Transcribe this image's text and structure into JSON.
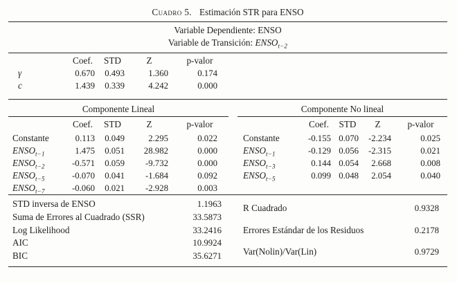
{
  "colors": {
    "text": "#1f1f1f",
    "rule": "#2a2a2a",
    "background": "#fdfdfc"
  },
  "caption": {
    "label": "Cuadro 5.",
    "title": "Estimación STR para ENSO"
  },
  "subtitle": {
    "dependent": "Variable Dependiente: ENSO",
    "transition_prefix": "Variable de Transición: ",
    "transition_var": {
      "base": "ENSO",
      "sub": "t−2"
    }
  },
  "params": {
    "headers": [
      "Coef.",
      "STD",
      "Z",
      "p-valor"
    ],
    "rows": [
      {
        "label": "γ",
        "coef": "0.670",
        "std": "0.493",
        "z": "1.360",
        "p": "0.174"
      },
      {
        "label": "c",
        "coef": "1.439",
        "std": "0.339",
        "z": "4.242",
        "p": "0.000"
      }
    ]
  },
  "linear": {
    "title": "Componente Lineal",
    "headers": [
      "Coef.",
      "STD",
      "Z",
      "p-valor"
    ],
    "rows": [
      {
        "base": "Constante",
        "sub": "",
        "coef": "0.113",
        "std": "0.049",
        "z": "2.295",
        "p": "0.022"
      },
      {
        "base": "ENSO",
        "sub": "t−1",
        "coef": "1.475",
        "std": "0.051",
        "z": "28.982",
        "p": "0.000"
      },
      {
        "base": "ENSO",
        "sub": "t−2",
        "coef": "-0.571",
        "std": "0.059",
        "z": "-9.732",
        "p": "0.000"
      },
      {
        "base": "ENSO",
        "sub": "t−5",
        "coef": "-0.070",
        "std": "0.041",
        "z": "-1.684",
        "p": "0.092"
      },
      {
        "base": "ENSO",
        "sub": "t−7",
        "coef": "-0.060",
        "std": "0.021",
        "z": "-2.928",
        "p": "0.003"
      }
    ]
  },
  "nonlinear": {
    "title": "Componente No lineal",
    "headers": [
      "Coef.",
      "STD",
      "Z",
      "p-valor"
    ],
    "rows": [
      {
        "base": "Constante",
        "sub": "",
        "coef": "-0.155",
        "std": "0.070",
        "z": "-2.234",
        "p": "0.025"
      },
      {
        "base": "ENSO",
        "sub": "t−1",
        "coef": "-0.129",
        "std": "0.056",
        "z": "-2.315",
        "p": "0.021"
      },
      {
        "base": "ENSO",
        "sub": "t−3",
        "coef": "0.144",
        "std": "0.054",
        "z": "2.668",
        "p": "0.008"
      },
      {
        "base": "ENSO",
        "sub": "t−5",
        "coef": "0.099",
        "std": "0.048",
        "z": "2.054",
        "p": "0.040"
      }
    ]
  },
  "stats": {
    "left": [
      {
        "label": "STD inversa de ENSO",
        "value": "1.1963"
      },
      {
        "label": "Suma de Errores al Cuadrado (SSR)",
        "value": "33.5873"
      },
      {
        "label": "Log Likelihood",
        "value": "33.2416"
      },
      {
        "label": "AIC",
        "value": "10.9924"
      },
      {
        "label": "BIC",
        "value": "35.6271"
      }
    ],
    "right": [
      {
        "label": "R Cuadrado",
        "value": "0.9328"
      },
      {
        "label": "Errores Estándar de los Residuos",
        "value": "0.2178"
      },
      {
        "label": "Var(Nolin)/Var(Lin)",
        "value": "0.9729"
      }
    ]
  }
}
